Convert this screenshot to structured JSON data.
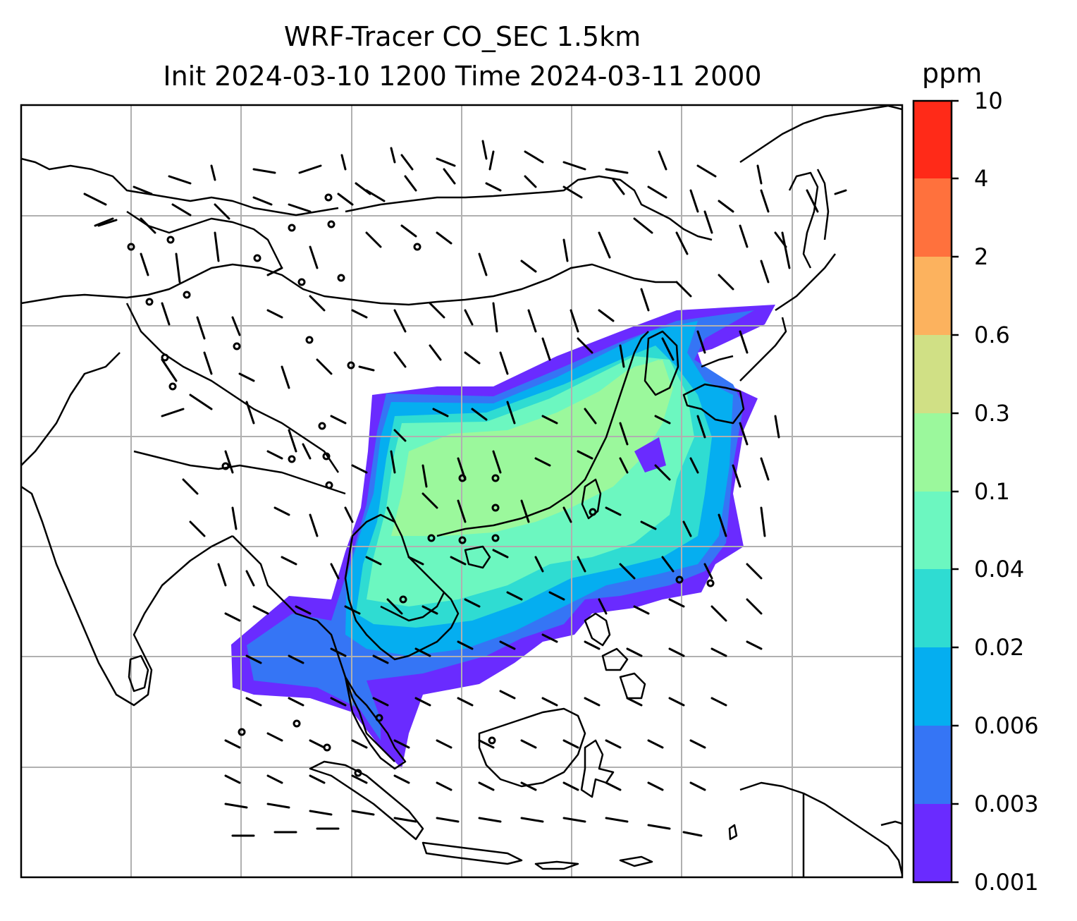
{
  "title": {
    "line1": "WRF-Tracer CO_SEC 1.5km",
    "line2": "Init 2024-03-10 1200 Time 2024-03-11 2000"
  },
  "colorbar": {
    "unit": "ppm",
    "levels": [
      "0.001",
      "0.003",
      "0.006",
      "0.02",
      "0.04",
      "0.1",
      "0.3",
      "0.6",
      "2",
      "4",
      "10"
    ],
    "colors": [
      "#6a2bff",
      "#3575f5",
      "#05aef0",
      "#2fdcd2",
      "#6cf7c0",
      "#9bf89c",
      "#d0e085",
      "#fcb25e",
      "#ff713d",
      "#ff2a18"
    ]
  },
  "map": {
    "gridlines": true,
    "coastline_color": "#000000",
    "tracer_shading": "CO_SEC concentration",
    "wind_barbs": true
  }
}
